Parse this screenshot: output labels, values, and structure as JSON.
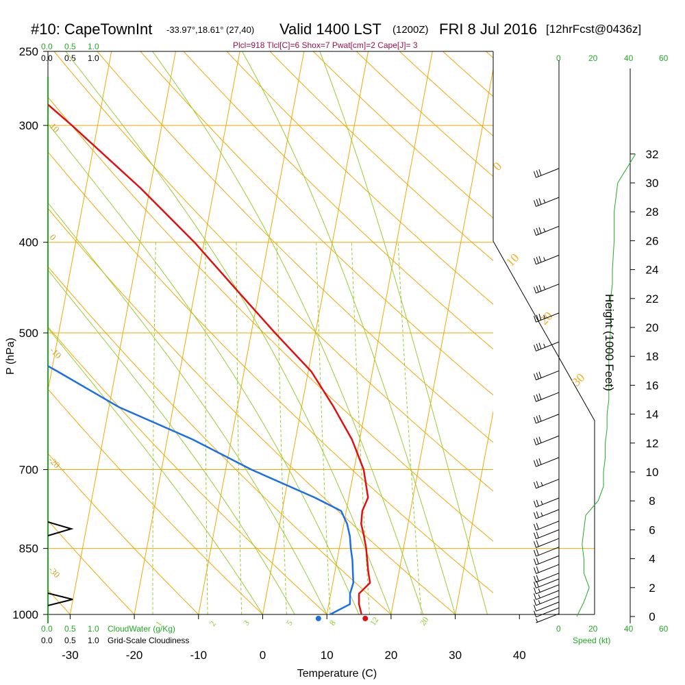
{
  "header": {
    "station": "#10: CapeTownInt",
    "coords": "-33.97°,18.61° (27,40)",
    "valid": "Valid 1400 LST",
    "utc": "(1200Z)",
    "date": "FRI 8 Jul 2016",
    "forecast": "[12hrFcst@0436z]"
  },
  "indices": "Plcl=918 Tlcl[C]=6 Shox=7 Pwat[cm]=2 Cape[J]= 3",
  "cloud_scale": {
    "green_labels": [
      "0.0",
      "0.5",
      "1.0"
    ],
    "black_labels": [
      "0.0",
      "0.5",
      "1.0"
    ],
    "cloudwater_label": "CloudWater (g/Kg)",
    "cloudiness_label": "Grid-Scale Cloudiness"
  },
  "speed_scale": {
    "labels": [
      "0",
      "20",
      "40",
      "60"
    ],
    "axis_label": "Speed (kt)"
  },
  "colors": {
    "temperature": "#e01010",
    "dewpoint": "#1a6ee8",
    "isotherm": "#f0a800",
    "mixing_ratio": "#99cc33",
    "green_axis": "#22aa22",
    "indices": "#a0104a"
  },
  "chart_data": {
    "type": "line",
    "title": "Skew-T sounding: CapeTownInt, FRI 8 Jul 2016",
    "xlabel": "Temperature (C)",
    "ylabel": "P (hPa)",
    "y2label": "Height (1000 Feet)",
    "x_ticks": [
      -30,
      -20,
      -10,
      0,
      10,
      20,
      30,
      40
    ],
    "p_ticks": [
      250,
      300,
      400,
      500,
      700,
      850,
      1000
    ],
    "height_ticks": [
      0,
      2,
      4,
      6,
      8,
      10,
      12,
      14,
      16,
      18,
      20,
      22,
      24,
      26,
      28,
      30,
      32
    ],
    "isopleth_labels": {
      "left": [
        "10",
        "0",
        "-10",
        "-20",
        "-30"
      ],
      "right": [
        "0",
        "10",
        "20",
        "30"
      ],
      "mixing": [
        "1",
        "2",
        "3",
        "5",
        "8",
        "12",
        "20"
      ]
    },
    "series": [
      {
        "name": "Temperature",
        "pressure": [
          1010,
          1000,
          975,
          950,
          925,
          900,
          875,
          850,
          825,
          800,
          775,
          750,
          700,
          650,
          600,
          550,
          500,
          450,
          400,
          350,
          300,
          265
        ],
        "values": [
          16.1,
          15.4,
          14.7,
          14.4,
          15.8,
          15.2,
          14.7,
          14.2,
          13.5,
          12.7,
          12.5,
          13.0,
          11.5,
          8.8,
          5.0,
          0.5,
          -6.3,
          -13.5,
          -21.5,
          -31.5,
          -44.0,
          -54.5
        ]
      },
      {
        "name": "Dewpoint",
        "pressure": [
          1010,
          1000,
          975,
          950,
          925,
          900,
          875,
          850,
          825,
          800,
          775,
          750,
          700,
          650,
          600,
          550,
          500,
          450,
          400,
          350,
          300,
          265
        ],
        "values": [
          8.8,
          10.5,
          13.3,
          13.0,
          13.2,
          12.8,
          12.4,
          11.8,
          11.3,
          10.5,
          9.2,
          4.7,
          -6.0,
          -16.0,
          -28.5,
          -39.0,
          -51.0,
          -61.5,
          -72.5,
          -81.0,
          -87.0,
          -92.0
        ]
      }
    ],
    "wind_barbs": {
      "note": "wind speed in knots by height (1000 ft)",
      "height_kft": [
        0.2,
        0.6,
        1.0,
        1.4,
        1.8,
        2.2,
        2.6,
        3.0,
        3.6,
        4.2,
        4.8,
        5.4,
        6.0,
        6.6,
        7.4,
        8.2,
        9.5,
        11.0,
        12.5,
        14.0,
        15.5,
        17.0,
        19.0,
        21.0,
        23.0,
        25.0,
        27.0,
        29.0,
        31.0
      ],
      "speed_kt": [
        5,
        8,
        12,
        15,
        15,
        15,
        20,
        20,
        20,
        20,
        20,
        20,
        20,
        20,
        25,
        25,
        25,
        30,
        30,
        30,
        30,
        30,
        35,
        35,
        35,
        35,
        35,
        35,
        30
      ]
    },
    "wind_speed_profile": {
      "height_kft": [
        0,
        1,
        2,
        3,
        4,
        5,
        6,
        7,
        8,
        9,
        10,
        11,
        12,
        13,
        14,
        15,
        16,
        18,
        20,
        22,
        23,
        24,
        26,
        28,
        30,
        32
      ],
      "speed_kt": [
        10,
        14,
        17,
        14,
        14,
        13,
        14,
        15,
        22,
        25,
        25,
        26,
        26,
        27,
        27,
        28,
        28,
        28,
        29,
        29,
        30,
        30,
        31,
        31,
        33,
        43
      ]
    }
  }
}
